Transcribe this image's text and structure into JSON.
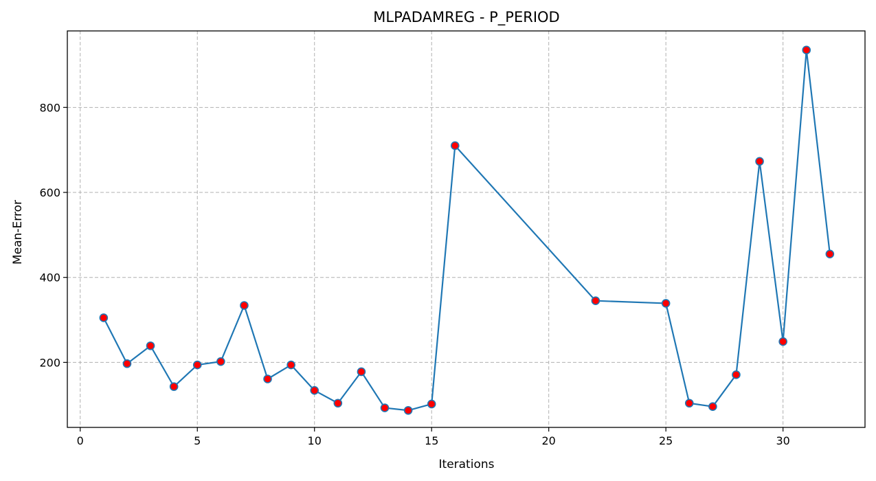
{
  "chart_data": {
    "type": "line",
    "title": "MLPADAMREG - P_PERIOD",
    "xlabel": "Iterations",
    "ylabel": "Mean-Error",
    "xlim": [
      -0.55,
      33.5
    ],
    "ylim": [
      47,
      980
    ],
    "xticks": [
      0,
      5,
      10,
      15,
      20,
      25,
      30
    ],
    "yticks": [
      200,
      400,
      600,
      800
    ],
    "grid": true,
    "series": [
      {
        "line_color": "#1f77b4",
        "marker_face_color": "#ff0000",
        "marker_edge_color": "#1f77b4",
        "x": [
          1,
          2,
          3,
          4,
          5,
          6,
          7,
          8,
          9,
          10,
          11,
          12,
          13,
          14,
          15,
          16,
          22,
          25,
          26,
          27,
          28,
          29,
          30,
          31,
          32
        ],
        "y": [
          305,
          197,
          239,
          143,
          194,
          202,
          334,
          161,
          194,
          134,
          104,
          178,
          93,
          87,
          102,
          710,
          345,
          339,
          104,
          96,
          171,
          673,
          249,
          935,
          455
        ]
      }
    ]
  }
}
